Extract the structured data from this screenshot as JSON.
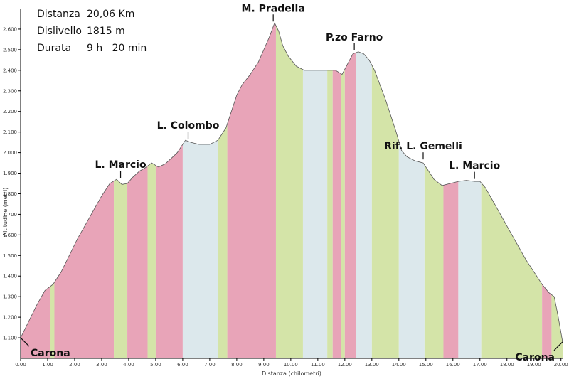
{
  "summary": {
    "distance_label": "Distanza",
    "distance_value": "20,06 Km",
    "climb_label": "Dislivello",
    "climb_value": "1815 m",
    "duration_label": "Durata",
    "duration_value": "9 h   20 min"
  },
  "chart_data": {
    "type": "area",
    "xlabel": "Distanza (chilometri)",
    "ylabel": "Altitudine (metri)",
    "xlim": [
      0,
      20.06
    ],
    "ylim": [
      1000,
      2700
    ],
    "x_ticks": [
      "0.00",
      "1.00",
      "2.00",
      "3.00",
      "4.00",
      "5.00",
      "6.00",
      "7.00",
      "8.00",
      "9.00",
      "10.00",
      "11.00",
      "12.00",
      "13.00",
      "14.00",
      "15.00",
      "16.00",
      "17.00",
      "18.00",
      "19.00",
      "20.00"
    ],
    "y_ticks": [
      "1.100",
      "1.200",
      "1.300",
      "1.400",
      "1.500",
      "1.600",
      "1.700",
      "1.800",
      "1.900",
      "2.000",
      "2.100",
      "2.200",
      "2.300",
      "2.400",
      "2.500",
      "2.600"
    ],
    "profile": {
      "x": [
        0,
        0.3,
        0.6,
        0.9,
        1.2,
        1.5,
        1.8,
        2.1,
        2.4,
        2.7,
        3.0,
        3.3,
        3.55,
        3.75,
        3.95,
        4.15,
        4.4,
        4.6,
        4.85,
        5.1,
        5.35,
        5.6,
        5.8,
        5.95,
        6.1,
        6.3,
        6.6,
        7.0,
        7.3,
        7.6,
        7.8,
        8.0,
        8.2,
        8.5,
        8.8,
        9.0,
        9.2,
        9.4,
        9.55,
        9.7,
        9.9,
        10.2,
        10.5,
        10.8,
        11.1,
        11.4,
        11.65,
        11.9,
        12.1,
        12.3,
        12.5,
        12.7,
        12.9,
        13.1,
        13.3,
        13.5,
        13.7,
        13.9,
        14.1,
        14.3,
        14.6,
        14.9,
        15.05,
        15.3,
        15.6,
        15.9,
        16.2,
        16.5,
        16.8,
        17.0,
        17.2,
        17.5,
        17.8,
        18.1,
        18.4,
        18.7,
        19.0,
        19.3,
        19.55,
        19.75,
        19.9,
        20.06
      ],
      "y": [
        1100,
        1180,
        1260,
        1330,
        1360,
        1420,
        1500,
        1580,
        1650,
        1720,
        1790,
        1850,
        1870,
        1845,
        1850,
        1880,
        1910,
        1925,
        1950,
        1930,
        1945,
        1975,
        2000,
        2030,
        2060,
        2050,
        2040,
        2040,
        2060,
        2120,
        2200,
        2280,
        2330,
        2380,
        2440,
        2500,
        2560,
        2630,
        2590,
        2520,
        2470,
        2420,
        2400,
        2400,
        2400,
        2400,
        2400,
        2380,
        2430,
        2480,
        2490,
        2480,
        2450,
        2400,
        2330,
        2260,
        2180,
        2100,
        2010,
        1980,
        1960,
        1950,
        1920,
        1870,
        1840,
        1850,
        1860,
        1865,
        1860,
        1860,
        1830,
        1760,
        1690,
        1620,
        1550,
        1480,
        1420,
        1360,
        1320,
        1300,
        1200,
        1080
      ]
    },
    "segments": [
      {
        "from": 0,
        "to": 1.1,
        "color": "#e8a4b8"
      },
      {
        "from": 1.1,
        "to": 1.25,
        "color": "#d4e4a8"
      },
      {
        "from": 1.25,
        "to": 3.45,
        "color": "#e8a4b8"
      },
      {
        "from": 3.45,
        "to": 3.95,
        "color": "#d4e4a8"
      },
      {
        "from": 3.95,
        "to": 4.7,
        "color": "#e8a4b8"
      },
      {
        "from": 4.7,
        "to": 5.0,
        "color": "#d4e4a8"
      },
      {
        "from": 5.0,
        "to": 6.0,
        "color": "#e8a4b8"
      },
      {
        "from": 6.0,
        "to": 7.3,
        "color": "#dce8ec"
      },
      {
        "from": 7.3,
        "to": 7.65,
        "color": "#d4e4a8"
      },
      {
        "from": 7.65,
        "to": 9.45,
        "color": "#e8a4b8"
      },
      {
        "from": 9.45,
        "to": 10.45,
        "color": "#d4e4a8"
      },
      {
        "from": 10.45,
        "to": 11.35,
        "color": "#dce8ec"
      },
      {
        "from": 11.35,
        "to": 11.55,
        "color": "#d4e4a8"
      },
      {
        "from": 11.55,
        "to": 11.85,
        "color": "#e8a4b8"
      },
      {
        "from": 11.85,
        "to": 12.0,
        "color": "#d4e4a8"
      },
      {
        "from": 12.0,
        "to": 12.4,
        "color": "#e8a4b8"
      },
      {
        "from": 12.4,
        "to": 13.0,
        "color": "#dce8ec"
      },
      {
        "from": 13.0,
        "to": 14.0,
        "color": "#d4e4a8"
      },
      {
        "from": 14.0,
        "to": 14.95,
        "color": "#dce8ec"
      },
      {
        "from": 14.95,
        "to": 15.65,
        "color": "#d4e4a8"
      },
      {
        "from": 15.65,
        "to": 16.2,
        "color": "#e8a4b8"
      },
      {
        "from": 16.2,
        "to": 17.05,
        "color": "#dce8ec"
      },
      {
        "from": 17.05,
        "to": 19.3,
        "color": "#d4e4a8"
      },
      {
        "from": 19.3,
        "to": 19.65,
        "color": "#e8a4b8"
      },
      {
        "from": 19.65,
        "to": 20.06,
        "color": "#d4e4a8"
      }
    ],
    "annotations": [
      {
        "text": "Carona",
        "x": 0.0,
        "y": 1100
      },
      {
        "text": "L. Marcio",
        "x": 3.7,
        "y": 1870
      },
      {
        "text": "L. Colombo",
        "x": 6.2,
        "y": 2060
      },
      {
        "text": "M. Pradella",
        "x": 9.35,
        "y": 2630
      },
      {
        "text": "P.zo Farno",
        "x": 12.35,
        "y": 2490
      },
      {
        "text": "Rif. L. Gemelli",
        "x": 14.9,
        "y": 1960
      },
      {
        "text": "L. Marcio",
        "x": 16.8,
        "y": 1865
      },
      {
        "text": "Carona",
        "x": 20.06,
        "y": 1080
      }
    ],
    "grid": false
  }
}
